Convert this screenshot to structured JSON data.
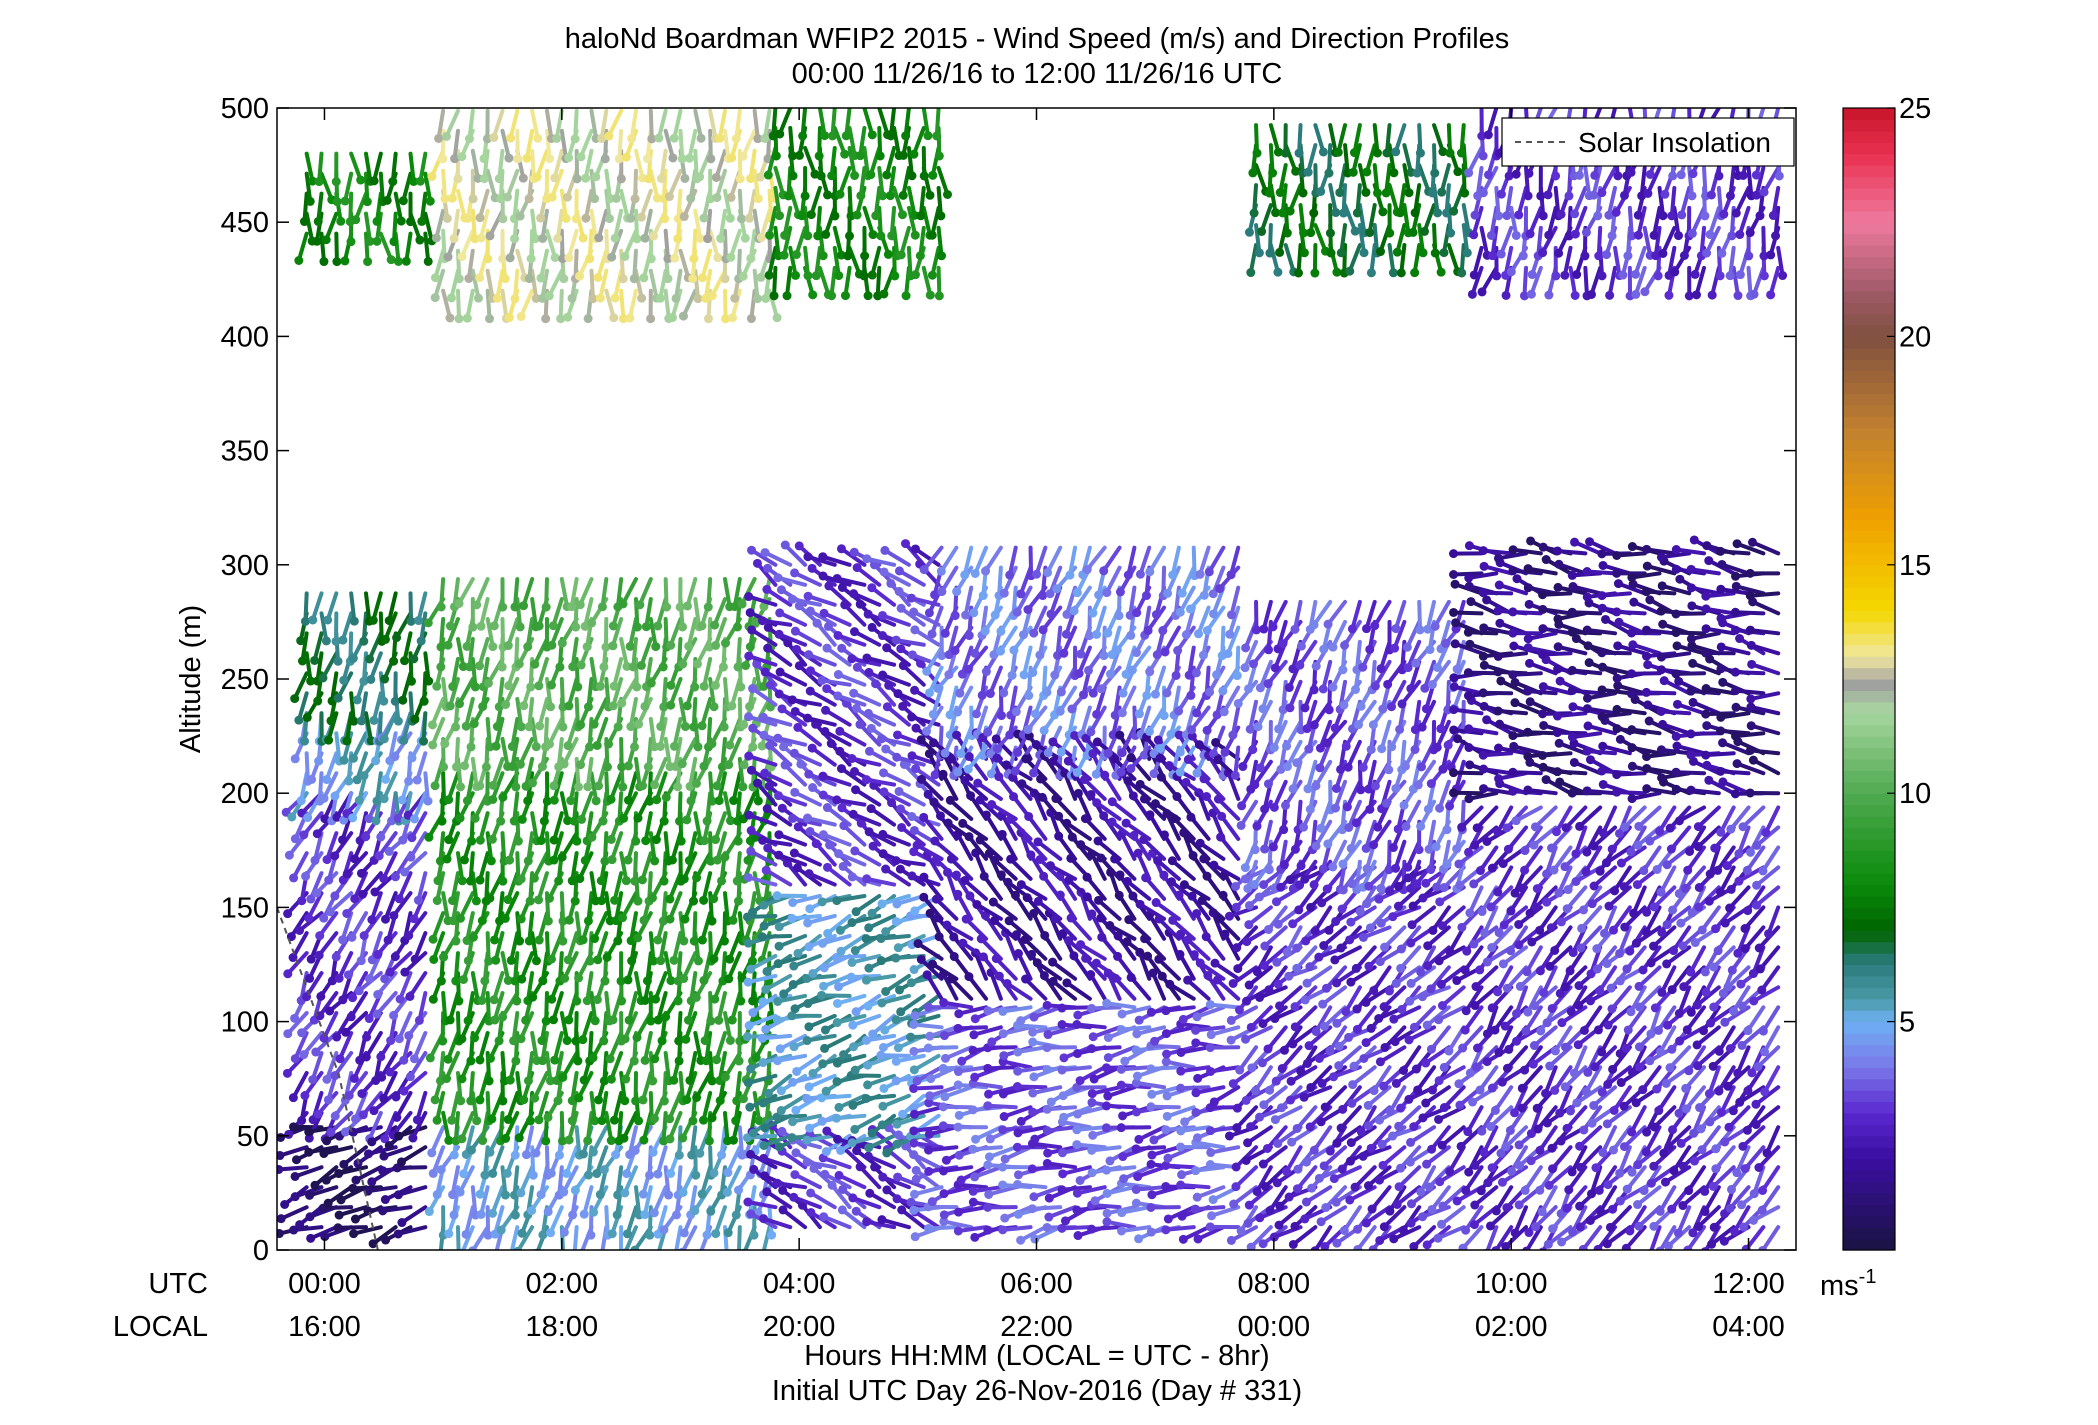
{
  "chart_data": {
    "type": "wind-barb-profile",
    "title": "haloNd Boardman WFIP2 2015 - Wind Speed (m/s) and Direction Profiles",
    "subtitle": "00:00 11/26/16 to 12:00 11/26/16  UTC",
    "ylabel": "Altitude (m)",
    "xlabel": "Hours HH:MM  (LOCAL = UTC - 8hr)",
    "xlabel2": "Initial UTC Day 26-Nov-2016 (Day # 331)",
    "x_row_labels": {
      "utc": "UTC",
      "local": "LOCAL"
    },
    "ylim": [
      0,
      500
    ],
    "yticks": [
      0,
      50,
      100,
      150,
      200,
      250,
      300,
      350,
      400,
      450,
      500
    ],
    "xlim_hours": [
      -0.4,
      12.4
    ],
    "xticks": [
      {
        "hour": 0,
        "utc": "00:00",
        "local": "16:00"
      },
      {
        "hour": 2,
        "utc": "02:00",
        "local": "18:00"
      },
      {
        "hour": 4,
        "utc": "04:00",
        "local": "20:00"
      },
      {
        "hour": 6,
        "utc": "06:00",
        "local": "22:00"
      },
      {
        "hour": 8,
        "utc": "08:00",
        "local": "00:00"
      },
      {
        "hour": 10,
        "utc": "10:00",
        "local": "02:00"
      },
      {
        "hour": 12,
        "utc": "12:00",
        "local": "04:00"
      }
    ],
    "legend": {
      "entry": "Solar Insolation",
      "placement": "top-right"
    },
    "colorbar": {
      "range": [
        0,
        25
      ],
      "ticks": [
        5,
        10,
        15,
        20,
        25
      ],
      "unit_label": "ms",
      "unit_exponent": "-1",
      "stops": [
        {
          "v": 0,
          "c": "#1a1443"
        },
        {
          "v": 2,
          "c": "#3a0ea0"
        },
        {
          "v": 3,
          "c": "#5a28d0"
        },
        {
          "v": 4,
          "c": "#7a78e8"
        },
        {
          "v": 5,
          "c": "#6fb0f5"
        },
        {
          "v": 5.5,
          "c": "#4a9aa8"
        },
        {
          "v": 6.3,
          "c": "#2a7a7a"
        },
        {
          "v": 7,
          "c": "#006400"
        },
        {
          "v": 8,
          "c": "#0a8a0a"
        },
        {
          "v": 10,
          "c": "#50aa50"
        },
        {
          "v": 11.8,
          "c": "#a8d6a0"
        },
        {
          "v": 12.4,
          "c": "#a0a0a0"
        },
        {
          "v": 13,
          "c": "#f0e8a0"
        },
        {
          "v": 14,
          "c": "#f5d800"
        },
        {
          "v": 16,
          "c": "#f0a000"
        },
        {
          "v": 18,
          "c": "#c08030"
        },
        {
          "v": 20,
          "c": "#805040"
        },
        {
          "v": 21,
          "c": "#a05a68"
        },
        {
          "v": 22.5,
          "c": "#f07aa0"
        },
        {
          "v": 24,
          "c": "#e83050"
        },
        {
          "v": 25,
          "c": "#c8142a"
        }
      ]
    },
    "solar_insolation_line": {
      "hours": [
        -0.4,
        0.12,
        0.45
      ],
      "altitudes_m": [
        150,
        77,
        0
      ]
    },
    "profile_regimes": [
      {
        "t_start": -0.15,
        "t_end": 0.95,
        "levels": [
          {
            "z0": 10,
            "z1": 60,
            "dir": 250,
            "spd": 0.8
          },
          {
            "z0": 60,
            "z1": 200,
            "dir": 210,
            "spd": 3
          },
          {
            "z0": 200,
            "z1": 235,
            "dir": 195,
            "spd": 5
          },
          {
            "z0": 235,
            "z1": 295,
            "dir": 190,
            "spd": 6.5
          },
          {
            "z0": 445,
            "z1": 480,
            "dir": 180,
            "spd": 8
          }
        ]
      },
      {
        "t_start": 1.0,
        "t_end": 3.75,
        "levels": [
          {
            "z0": 10,
            "z1": 60,
            "dir": 195,
            "spd": 5
          },
          {
            "z0": 60,
            "z1": 215,
            "dir": 190,
            "spd": 8.5
          },
          {
            "z0": 215,
            "z1": 300,
            "dir": 190,
            "spd": 10
          },
          {
            "z0": 420,
            "z1": 500,
            "dir": 185,
            "spd": 12.5
          }
        ]
      },
      {
        "t_start": 3.8,
        "t_end": 5.2,
        "levels": [
          {
            "z0": 10,
            "z1": 50,
            "dir": 300,
            "spd": 3
          },
          {
            "z0": 50,
            "z1": 160,
            "dir": 250,
            "spd": 5.5
          },
          {
            "z0": 160,
            "z1": 300,
            "dir": 300,
            "spd": 3
          },
          {
            "z0": 430,
            "z1": 500,
            "dir": 180,
            "spd": 8
          }
        ]
      },
      {
        "t_start": 5.2,
        "t_end": 7.8,
        "levels": [
          {
            "z0": 10,
            "z1": 110,
            "dir": 260,
            "spd": 3.5
          },
          {
            "z0": 110,
            "z1": 220,
            "dir": 320,
            "spd": 2
          },
          {
            "z0": 220,
            "z1": 310,
            "dir": 200,
            "spd": 4
          }
        ]
      },
      {
        "t_start": 7.85,
        "t_end": 9.7,
        "levels": [
          {
            "z0": 10,
            "z1": 170,
            "dir": 230,
            "spd": 3
          },
          {
            "z0": 170,
            "z1": 290,
            "dir": 200,
            "spd": 3.5
          },
          {
            "z0": 440,
            "z1": 500,
            "dir": 180,
            "spd": 7
          }
        ]
      },
      {
        "t_start": 9.75,
        "t_end": 12.3,
        "levels": [
          {
            "z0": 10,
            "z1": 200,
            "dir": 220,
            "spd": 3
          },
          {
            "z0": 200,
            "z1": 310,
            "dir": 280,
            "spd": 1.5
          },
          {
            "z0": 430,
            "z1": 500,
            "dir": 190,
            "spd": 3
          }
        ]
      }
    ]
  }
}
